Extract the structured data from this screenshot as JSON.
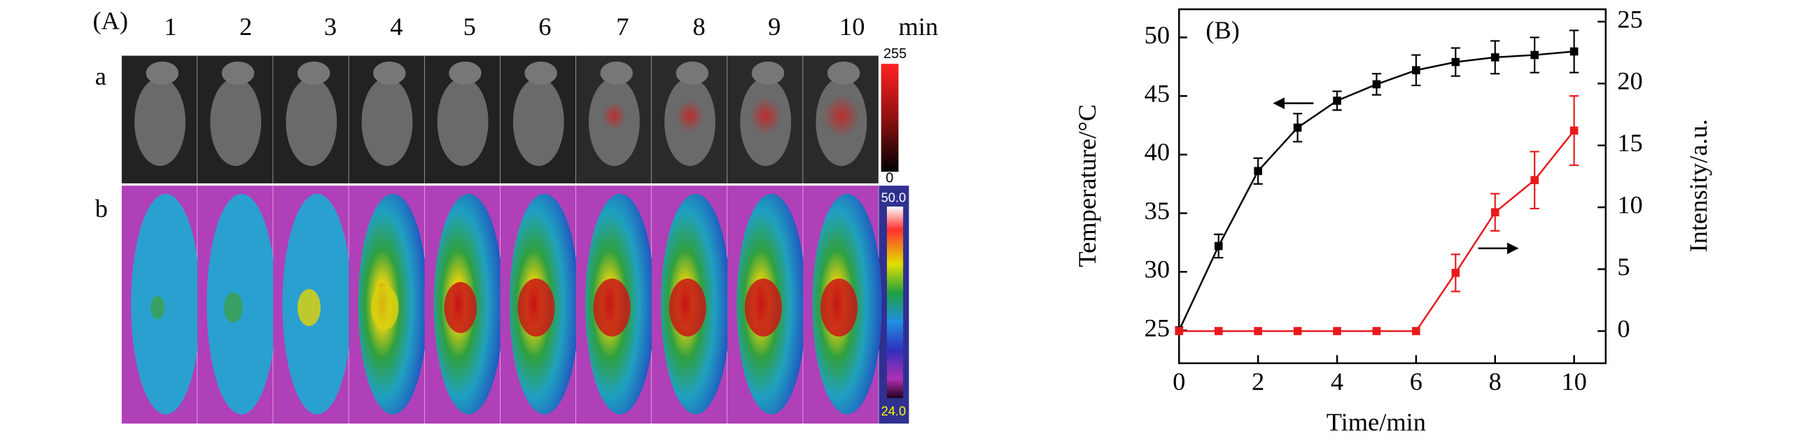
{
  "panel_a": {
    "label": "(A)",
    "times": [
      "1",
      "2",
      "3",
      "4",
      "5",
      "6",
      "7",
      "8",
      "9",
      "10"
    ],
    "unit": "min",
    "rows": [
      "a",
      "b"
    ],
    "scale_a": [
      "255",
      "0"
    ],
    "scale_b": [
      "50.0",
      "24.0"
    ]
  },
  "chart_data": {
    "type": "line",
    "title": "(B)",
    "xlabel": "Time/min",
    "ylabel": "Temperature/°C",
    "y2label": "Intensity/a.u.",
    "x": [
      0,
      1,
      2,
      3,
      4,
      5,
      6,
      7,
      8,
      9,
      10
    ],
    "xlim": [
      0,
      10.8
    ],
    "xticks": [
      0,
      2,
      4,
      6,
      8,
      10
    ],
    "ylim": [
      22.2,
      52.4
    ],
    "yticks": [
      25,
      30,
      35,
      40,
      45,
      50
    ],
    "y2lim": [
      -2.6,
      26
    ],
    "y2ticks": [
      0,
      5,
      10,
      15,
      20,
      25
    ],
    "series": [
      {
        "color": "#000000",
        "values": [
          25,
          32.2,
          38.6,
          42.3,
          44.6,
          46.0,
          47.2,
          47.9,
          48.3,
          48.5,
          48.8
        ],
        "errors": [
          0,
          1.0,
          1.1,
          1.2,
          0.8,
          0.9,
          1.3,
          1.2,
          1.4,
          1.5,
          1.8
        ]
      },
      {
        "color": "#e8191c",
        "axis": "y2",
        "values": [
          0,
          0,
          0,
          0,
          0,
          0,
          0,
          4.7,
          9.6,
          12.2,
          16.2
        ],
        "errors": [
          0,
          0,
          0,
          0,
          0,
          0,
          0,
          1.5,
          1.5,
          2.3,
          2.8
        ]
      }
    ]
  }
}
